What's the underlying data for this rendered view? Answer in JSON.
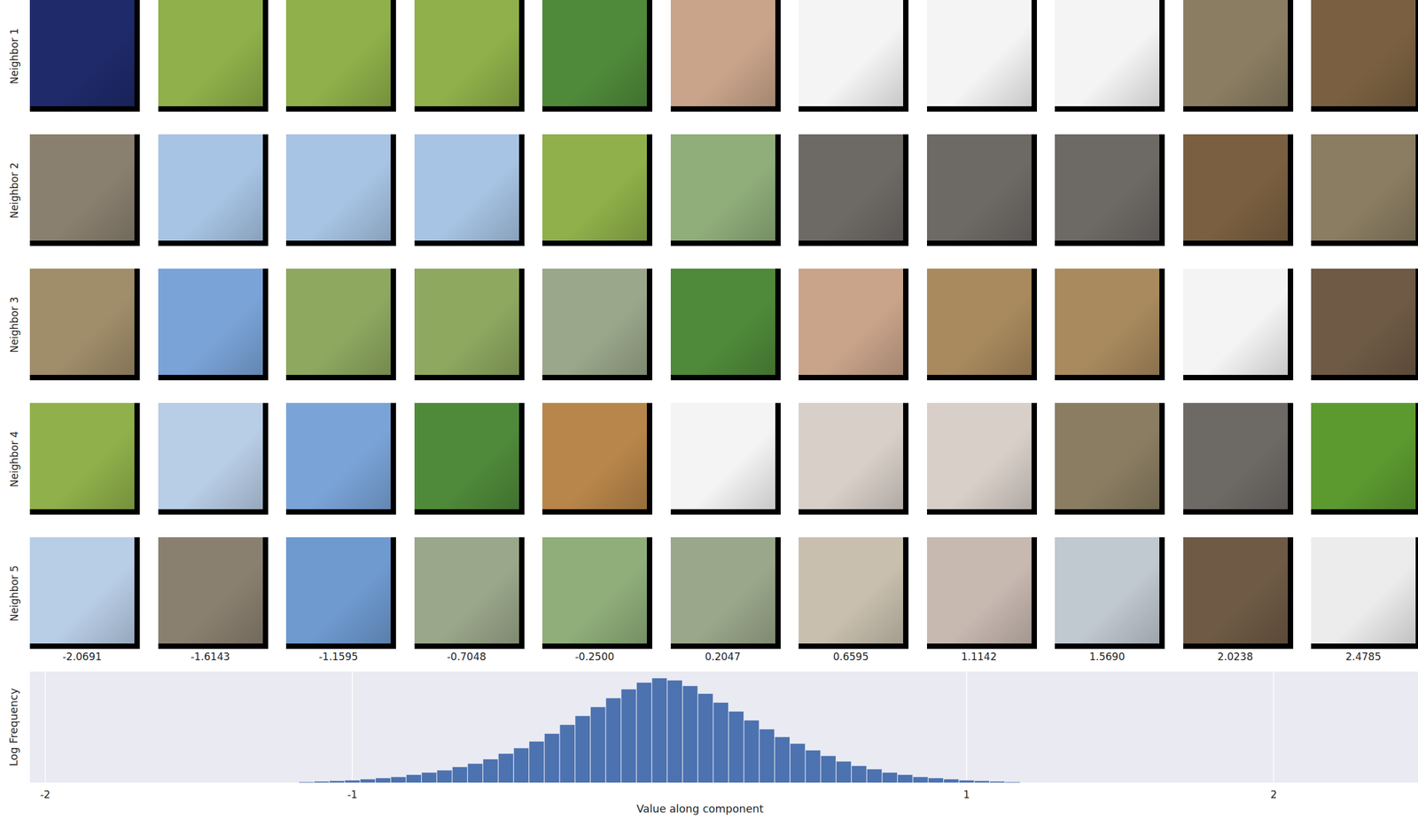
{
  "chart_data": {
    "type": "histogram",
    "x_label": "Value along component",
    "y_label": "Log Frequency",
    "color": "#4c72b0",
    "grid": true,
    "tick_labels": "x",
    "xlim": [
      -2.05,
      2.47
    ],
    "xticks": [
      -2,
      -1,
      1,
      2
    ],
    "ylim": [
      0,
      1
    ],
    "bins": [
      -1.175,
      -1.125,
      -1.075,
      -1.025,
      -0.975,
      -0.925,
      -0.875,
      -0.825,
      -0.775,
      -0.725,
      -0.675,
      -0.625,
      -0.575,
      -0.525,
      -0.475,
      -0.425,
      -0.375,
      -0.325,
      -0.275,
      -0.225,
      -0.175,
      -0.125,
      -0.075,
      -0.025,
      0.025,
      0.075,
      0.125,
      0.175,
      0.225,
      0.275,
      0.325,
      0.375,
      0.425,
      0.475,
      0.525,
      0.575,
      0.625,
      0.675,
      0.725,
      0.775,
      0.825,
      0.875,
      0.925,
      0.975,
      1.025,
      1.075,
      1.125,
      1.175
    ],
    "values": [
      0.005,
      0.01,
      0.015,
      0.02,
      0.03,
      0.04,
      0.05,
      0.07,
      0.09,
      0.11,
      0.14,
      0.17,
      0.21,
      0.26,
      0.31,
      0.37,
      0.44,
      0.52,
      0.6,
      0.68,
      0.76,
      0.84,
      0.9,
      0.94,
      0.92,
      0.87,
      0.8,
      0.72,
      0.64,
      0.56,
      0.48,
      0.41,
      0.35,
      0.29,
      0.24,
      0.19,
      0.15,
      0.12,
      0.09,
      0.07,
      0.05,
      0.04,
      0.03,
      0.02,
      0.015,
      0.01,
      0.005
    ]
  },
  "image_grid": {
    "column_values": [
      -2.0691,
      -1.6143,
      -1.1595,
      -0.7048,
      {
        "value": -0.25,
        "label": "-0.2500"
      },
      0.2047,
      0.6595,
      1.1142,
      {
        "value": 1.569,
        "label": "1.5690"
      },
      2.0238,
      2.4785
    ],
    "rows": [
      {
        "label": "Neighbor 1",
        "colors": [
          "#1e2a6a",
          "#8fb04a",
          "#8fb04a",
          "#8fb04a",
          "#4f8a3a",
          "#c9a48a",
          "#f4f4f4",
          "#f4f4f4",
          "#f4f4f4",
          "#8a7d62",
          "#7a6040"
        ]
      },
      {
        "label": "Neighbor 2",
        "colors": [
          "#8a8070",
          "#a7c4e4",
          "#a7c4e4",
          "#a7c4e4",
          "#8fb04a",
          "#8fae7a",
          "#6d6a66",
          "#6d6a66",
          "#6d6a66",
          "#7a6040",
          "#8a7d62"
        ]
      },
      {
        "label": "Neighbor 3",
        "colors": [
          "#a08d6a",
          "#7aa4d8",
          "#8ea860",
          "#8ea860",
          "#9aa78a",
          "#4f8a3a",
          "#c9a48a",
          "#a88a5e",
          "#a88a5e",
          "#f4f4f4",
          "#6e5a45"
        ]
      },
      {
        "label": "Neighbor 4",
        "colors": [
          "#8fb04a",
          "#b8cde6",
          "#7aa4d8",
          "#4f8a3a",
          "#b8864a",
          "#f4f4f4",
          "#d8cfc8",
          "#d8cfc8",
          "#8a7d62",
          "#6d6a66",
          "#5c9a30"
        ]
      },
      {
        "label": "Neighbor 5",
        "colors": [
          "#b8cde6",
          "#8a8070",
          "#6e9ad0",
          "#9aa78a",
          "#8fae7a",
          "#9aa78a",
          "#c8bfae",
          "#c7b8b0",
          "#c0c8d0",
          "#6e5a45",
          "#ececec"
        ]
      }
    ]
  }
}
